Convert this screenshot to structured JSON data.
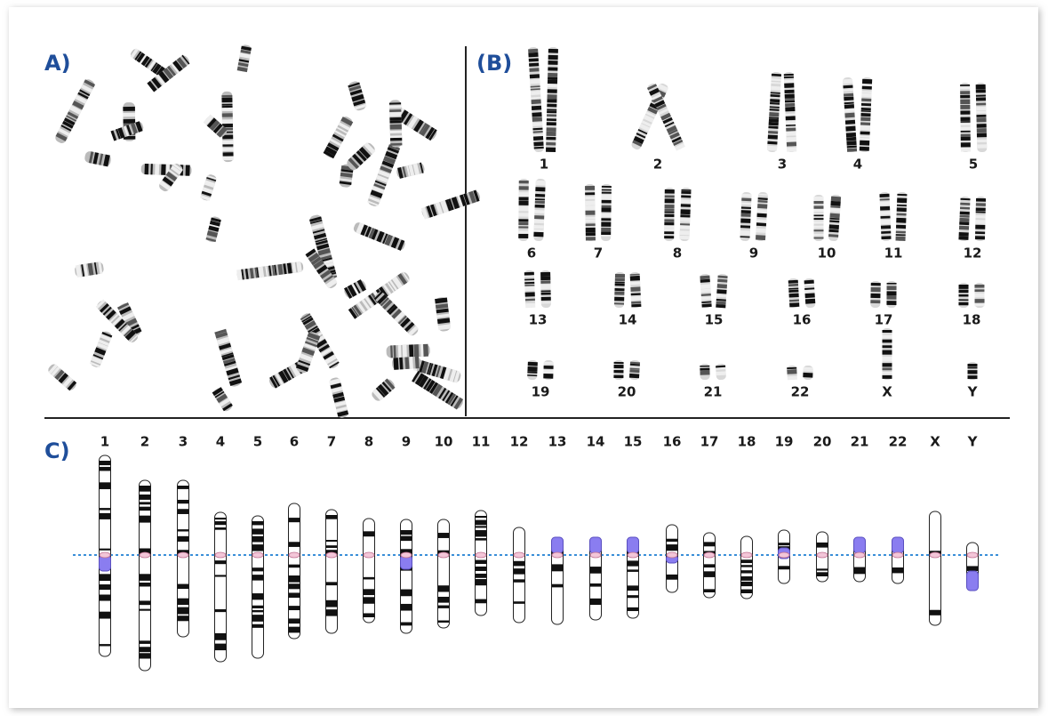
{
  "panels": {
    "a": {
      "label": "A)"
    },
    "b": {
      "label": "(B)",
      "chromosomes": [
        "1",
        "2",
        "3",
        "4",
        "5",
        "6",
        "7",
        "8",
        "9",
        "10",
        "11",
        "12",
        "13",
        "14",
        "15",
        "16",
        "17",
        "18",
        "19",
        "20",
        "21",
        "22",
        "X",
        "Y"
      ]
    },
    "c": {
      "label": "C)",
      "chromosomes": [
        "1",
        "2",
        "3",
        "4",
        "5",
        "6",
        "7",
        "8",
        "9",
        "10",
        "11",
        "12",
        "13",
        "14",
        "15",
        "16",
        "17",
        "18",
        "19",
        "20",
        "21",
        "22",
        "X",
        "Y"
      ]
    }
  }
}
